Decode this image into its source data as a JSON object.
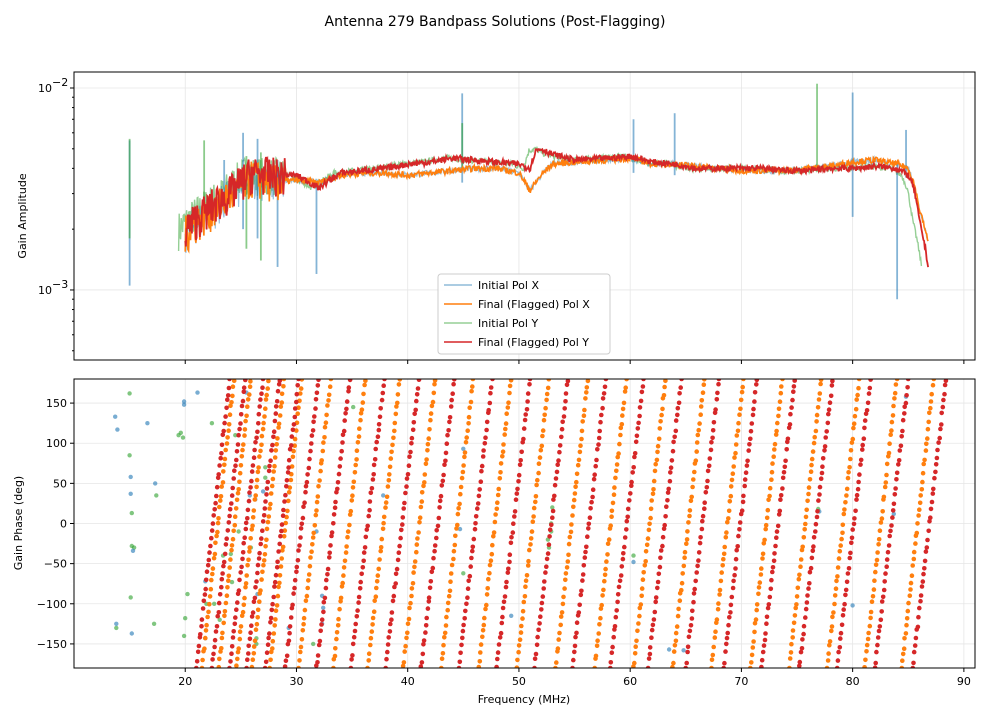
{
  "chart_data": {
    "type": "line",
    "title": "Antenna 279 Bandpass Solutions (Post-Flagging)",
    "xlabel": "Frequency (MHz)",
    "xlim": [
      10,
      91
    ],
    "x_ticks": [
      20,
      30,
      40,
      50,
      60,
      70,
      80,
      90
    ],
    "x_tick_labels": [
      "20",
      "30",
      "40",
      "50",
      "60",
      "70",
      "80",
      "90"
    ],
    "legend": [
      "Initial Pol X",
      "Final (Flagged) Pol X",
      "Initial Pol Y",
      "Final (Flagged) Pol Y"
    ],
    "colors": {
      "pol_x_initial": "#1f77b4",
      "pol_x_final": "#ff7f0e",
      "pol_y_initial": "#2ca02c",
      "pol_y_final": "#d62728"
    },
    "amplitude_panel": {
      "ylabel": "Gain Amplitude",
      "yscale": "log",
      "ylim": [
        0.00045,
        0.012
      ],
      "y_tick_labels": [
        {
          "value": 0.01,
          "base": "10",
          "exp": "−2"
        },
        {
          "value": 0.001,
          "base": "10",
          "exp": "−3"
        }
      ],
      "legend_location": "lower center",
      "series": [
        {
          "name": "Final (Flagged) Pol X",
          "x": [
            20,
            22,
            24,
            26,
            28,
            30,
            32,
            34,
            36,
            38,
            40,
            42,
            44,
            46,
            48,
            50,
            51,
            52,
            53,
            55,
            58,
            60,
            62,
            64,
            66,
            68,
            70,
            72,
            74,
            76,
            78,
            80,
            82,
            84,
            85,
            85.5,
            86,
            86.8
          ],
          "y": [
            0.0019,
            0.0024,
            0.0029,
            0.0036,
            0.0034,
            0.0035,
            0.0034,
            0.0037,
            0.0038,
            0.0038,
            0.0037,
            0.0038,
            0.0039,
            0.004,
            0.004,
            0.0038,
            0.0031,
            0.0037,
            0.0042,
            0.0043,
            0.0044,
            0.0045,
            0.0042,
            0.0042,
            0.0041,
            0.004,
            0.0039,
            0.0039,
            0.0039,
            0.004,
            0.0041,
            0.0043,
            0.0044,
            0.0042,
            0.004,
            0.0034,
            0.0025,
            0.0017
          ]
        },
        {
          "name": "Final (Flagged) Pol Y",
          "x": [
            20,
            22,
            24,
            26,
            28,
            30,
            32,
            34,
            36,
            38,
            40,
            42,
            44,
            46,
            48,
            50,
            51,
            51.5,
            52,
            53,
            55,
            58,
            60,
            62,
            64,
            66,
            68,
            70,
            72,
            74,
            76,
            78,
            80,
            82,
            84,
            85,
            85.5,
            86,
            86.8
          ],
          "y": [
            0.002,
            0.0025,
            0.003,
            0.0038,
            0.0037,
            0.0037,
            0.0032,
            0.0038,
            0.0039,
            0.004,
            0.0042,
            0.0043,
            0.0045,
            0.0044,
            0.0043,
            0.0042,
            0.004,
            0.0049,
            0.005,
            0.0047,
            0.0044,
            0.0045,
            0.0046,
            0.0043,
            0.0042,
            0.004,
            0.004,
            0.004,
            0.004,
            0.0039,
            0.0039,
            0.004,
            0.004,
            0.0041,
            0.004,
            0.0037,
            0.0032,
            0.0022,
            0.0013
          ]
        },
        {
          "name": "Initial Pol X",
          "spikes": [
            [
              15,
              0.00105,
              0.0055
            ],
            [
              23.5,
              0.0025,
              0.0044
            ],
            [
              25.2,
              0.002,
              0.006
            ],
            [
              26.5,
              0.0018,
              0.0056
            ],
            [
              28.3,
              0.0013,
              0.0044
            ],
            [
              31.8,
              0.0012,
              0.0034
            ],
            [
              44.9,
              0.0034,
              0.0094
            ],
            [
              60.3,
              0.0038,
              0.007
            ],
            [
              64,
              0.0037,
              0.0075
            ],
            [
              80,
              0.0023,
              0.0095
            ],
            [
              84,
              0.0009,
              0.0043
            ],
            [
              84.8,
              0.0036,
              0.0062
            ]
          ]
        },
        {
          "name": "Initial Pol Y",
          "spikes": [
            [
              15,
              0.0018,
              0.0056
            ],
            [
              21.7,
              0.0026,
              0.0055
            ],
            [
              25.5,
              0.0016,
              0.0046
            ],
            [
              26.8,
              0.0014,
              0.0048
            ],
            [
              44.9,
              0.004,
              0.0067
            ],
            [
              76.8,
              0.004,
              0.0105
            ]
          ]
        }
      ]
    },
    "phase_panel": {
      "ylabel": "Gain Phase (deg)",
      "ylim": [
        -180,
        180
      ],
      "y_ticks": [
        150,
        100,
        50,
        0,
        -50,
        -100,
        -150
      ],
      "y_tick_labels": [
        "150",
        "100",
        "50",
        "0",
        "−50",
        "−100",
        "−150"
      ],
      "series": [
        {
          "name": "Final (Flagged) Pol X",
          "wrap_starts_mhz": [
            21.5,
            23.0,
            24.6,
            26.0,
            27.6,
            30.2,
            33.3,
            36.4,
            39.6,
            43.0,
            46.4,
            49.8,
            53.3,
            56.8,
            60.3,
            63.8,
            67.3,
            70.8,
            74.3,
            77.7,
            81.1,
            84.4
          ],
          "slope_deg_per_mhz": 125
        },
        {
          "name": "Final (Flagged) Pol Y",
          "wrap_starts_mhz": [
            21.0,
            22.4,
            24.0,
            25.5,
            27.2,
            29.0,
            31.8,
            34.9,
            38.0,
            41.2,
            44.6,
            48.0,
            51.4,
            54.8,
            58.2,
            61.6,
            65.0,
            68.4,
            71.8,
            75.2,
            78.6,
            82.0,
            85.4
          ],
          "slope_deg_per_mhz": 120
        },
        {
          "name": "Initial Pol X",
          "points": [
            [
              13.7,
              133
            ],
            [
              13.8,
              -125
            ],
            [
              13.9,
              117
            ],
            [
              15.1,
              58
            ],
            [
              15.1,
              37
            ],
            [
              15.2,
              -137
            ],
            [
              15.3,
              -34
            ],
            [
              16.6,
              125
            ],
            [
              17.3,
              50
            ],
            [
              19.9,
              152
            ],
            [
              19.9,
              148
            ],
            [
              21.1,
              163
            ],
            [
              21.8,
              -72
            ],
            [
              21.8,
              -143
            ],
            [
              25.5,
              163
            ],
            [
              25.8,
              35
            ],
            [
              26.3,
              30
            ],
            [
              26.5,
              -88
            ],
            [
              27.0,
              40
            ],
            [
              29.3,
              -130
            ],
            [
              31.8,
              -10
            ],
            [
              32.3,
              -90
            ],
            [
              32.3,
              -125
            ],
            [
              32.4,
              -105
            ],
            [
              37.8,
              35
            ],
            [
              44.7,
              -7
            ],
            [
              45.0,
              93
            ],
            [
              49.3,
              -115
            ],
            [
              60.3,
              -48
            ],
            [
              63.5,
              -157
            ],
            [
              64.8,
              -158
            ],
            [
              77.0,
              15
            ],
            [
              80.0,
              -102
            ],
            [
              83.7,
              12
            ],
            [
              84.8,
              158
            ]
          ]
        },
        {
          "name": "Initial Pol Y",
          "points": [
            [
              13.8,
              -130
            ],
            [
              15.0,
              162
            ],
            [
              15.0,
              85
            ],
            [
              15.1,
              -92
            ],
            [
              15.2,
              13
            ],
            [
              15.2,
              -28
            ],
            [
              15.4,
              -30
            ],
            [
              17.2,
              -125
            ],
            [
              17.4,
              35
            ],
            [
              19.4,
              110
            ],
            [
              19.6,
              113
            ],
            [
              19.8,
              107
            ],
            [
              19.9,
              -140
            ],
            [
              20.0,
              -118
            ],
            [
              20.2,
              -88
            ],
            [
              21.9,
              -100
            ],
            [
              22.4,
              125
            ],
            [
              22.6,
              -100
            ],
            [
              23.1,
              -120
            ],
            [
              23.4,
              -40
            ],
            [
              24.1,
              -38
            ],
            [
              24.2,
              -73
            ],
            [
              24.5,
              110
            ],
            [
              24.8,
              -10
            ],
            [
              25.9,
              -30
            ],
            [
              26.4,
              -150
            ],
            [
              26.4,
              -143
            ],
            [
              27.2,
              57
            ],
            [
              27.2,
              70
            ],
            [
              31.5,
              -150
            ],
            [
              35.1,
              145
            ],
            [
              45.0,
              -62
            ],
            [
              52.6,
              -20
            ],
            [
              52.7,
              -30
            ],
            [
              52.9,
              -10
            ],
            [
              52.9,
              0
            ],
            [
              53.0,
              20
            ],
            [
              60.3,
              -40
            ],
            [
              76.9,
              18
            ]
          ]
        }
      ]
    }
  }
}
